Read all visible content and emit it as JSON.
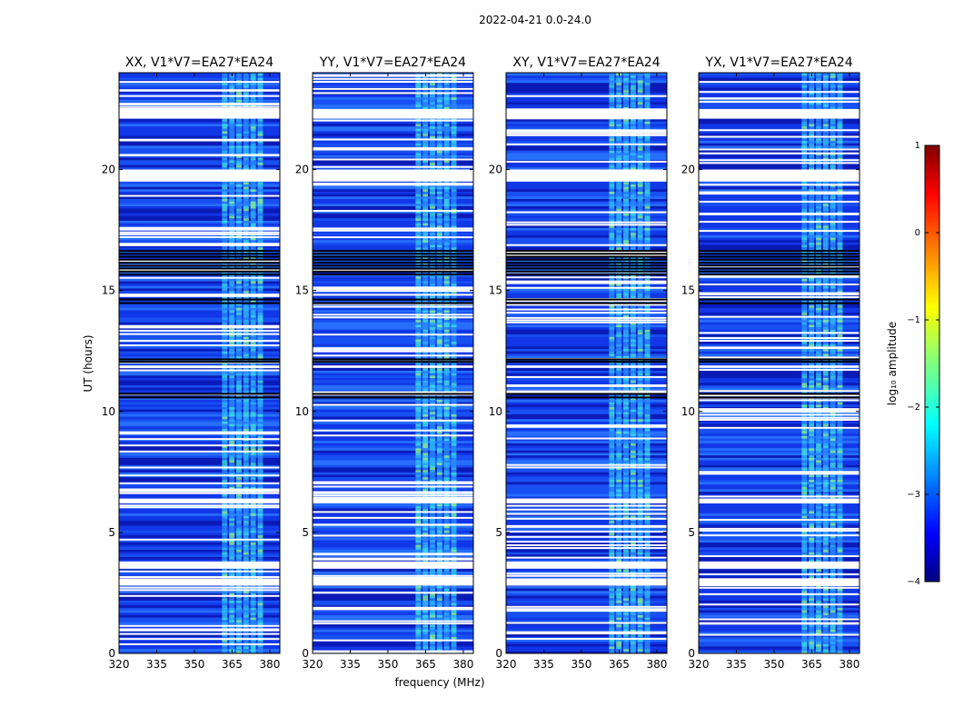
{
  "chart_data": {
    "type": "heatmap",
    "suptitle": "2022-04-21 0.0-24.0",
    "xlabel": "frequency (MHz)",
    "ylabel": "UT (hours)",
    "xlim": [
      320,
      384
    ],
    "ylim": [
      0,
      24
    ],
    "xticks": [
      320,
      335,
      350,
      365,
      380
    ],
    "yticks": [
      0,
      5,
      10,
      15,
      20
    ],
    "panels": [
      {
        "title": "XX, V1*V7=EA27*EA24"
      },
      {
        "title": "YY, V1*V7=EA27*EA24"
      },
      {
        "title": "XY, V1*V7=EA27*EA24"
      },
      {
        "title": "YX, V1*V7=EA27*EA24"
      }
    ],
    "bright_band_mhz": [
      361,
      378
    ],
    "blank_rows_ut": [
      [
        19.5,
        20.0
      ],
      [
        22.1,
        22.5
      ],
      [
        2.8,
        3.1
      ],
      [
        3.5,
        3.8
      ],
      [
        6.2,
        6.4
      ],
      [
        11.8,
        11.9
      ]
    ],
    "dark_rows_ut": [
      [
        15.6,
        16.7
      ],
      [
        12.0,
        12.2
      ],
      [
        10.5,
        10.8
      ],
      [
        14.4,
        14.7
      ]
    ],
    "colorbar": {
      "label": "log₁₀ amplitude",
      "range": [
        -4,
        1
      ],
      "ticks": [
        -4,
        -3,
        -2,
        -1,
        0,
        1
      ],
      "tick_labels": [
        "−4",
        "−3",
        "−2",
        "−1",
        "0",
        "1"
      ],
      "colormap": [
        "#00007f",
        "#0000ff",
        "#007fff",
        "#00ffff",
        "#7fff7f",
        "#ffff00",
        "#ff7f00",
        "#ff0000",
        "#7f0000"
      ]
    }
  }
}
